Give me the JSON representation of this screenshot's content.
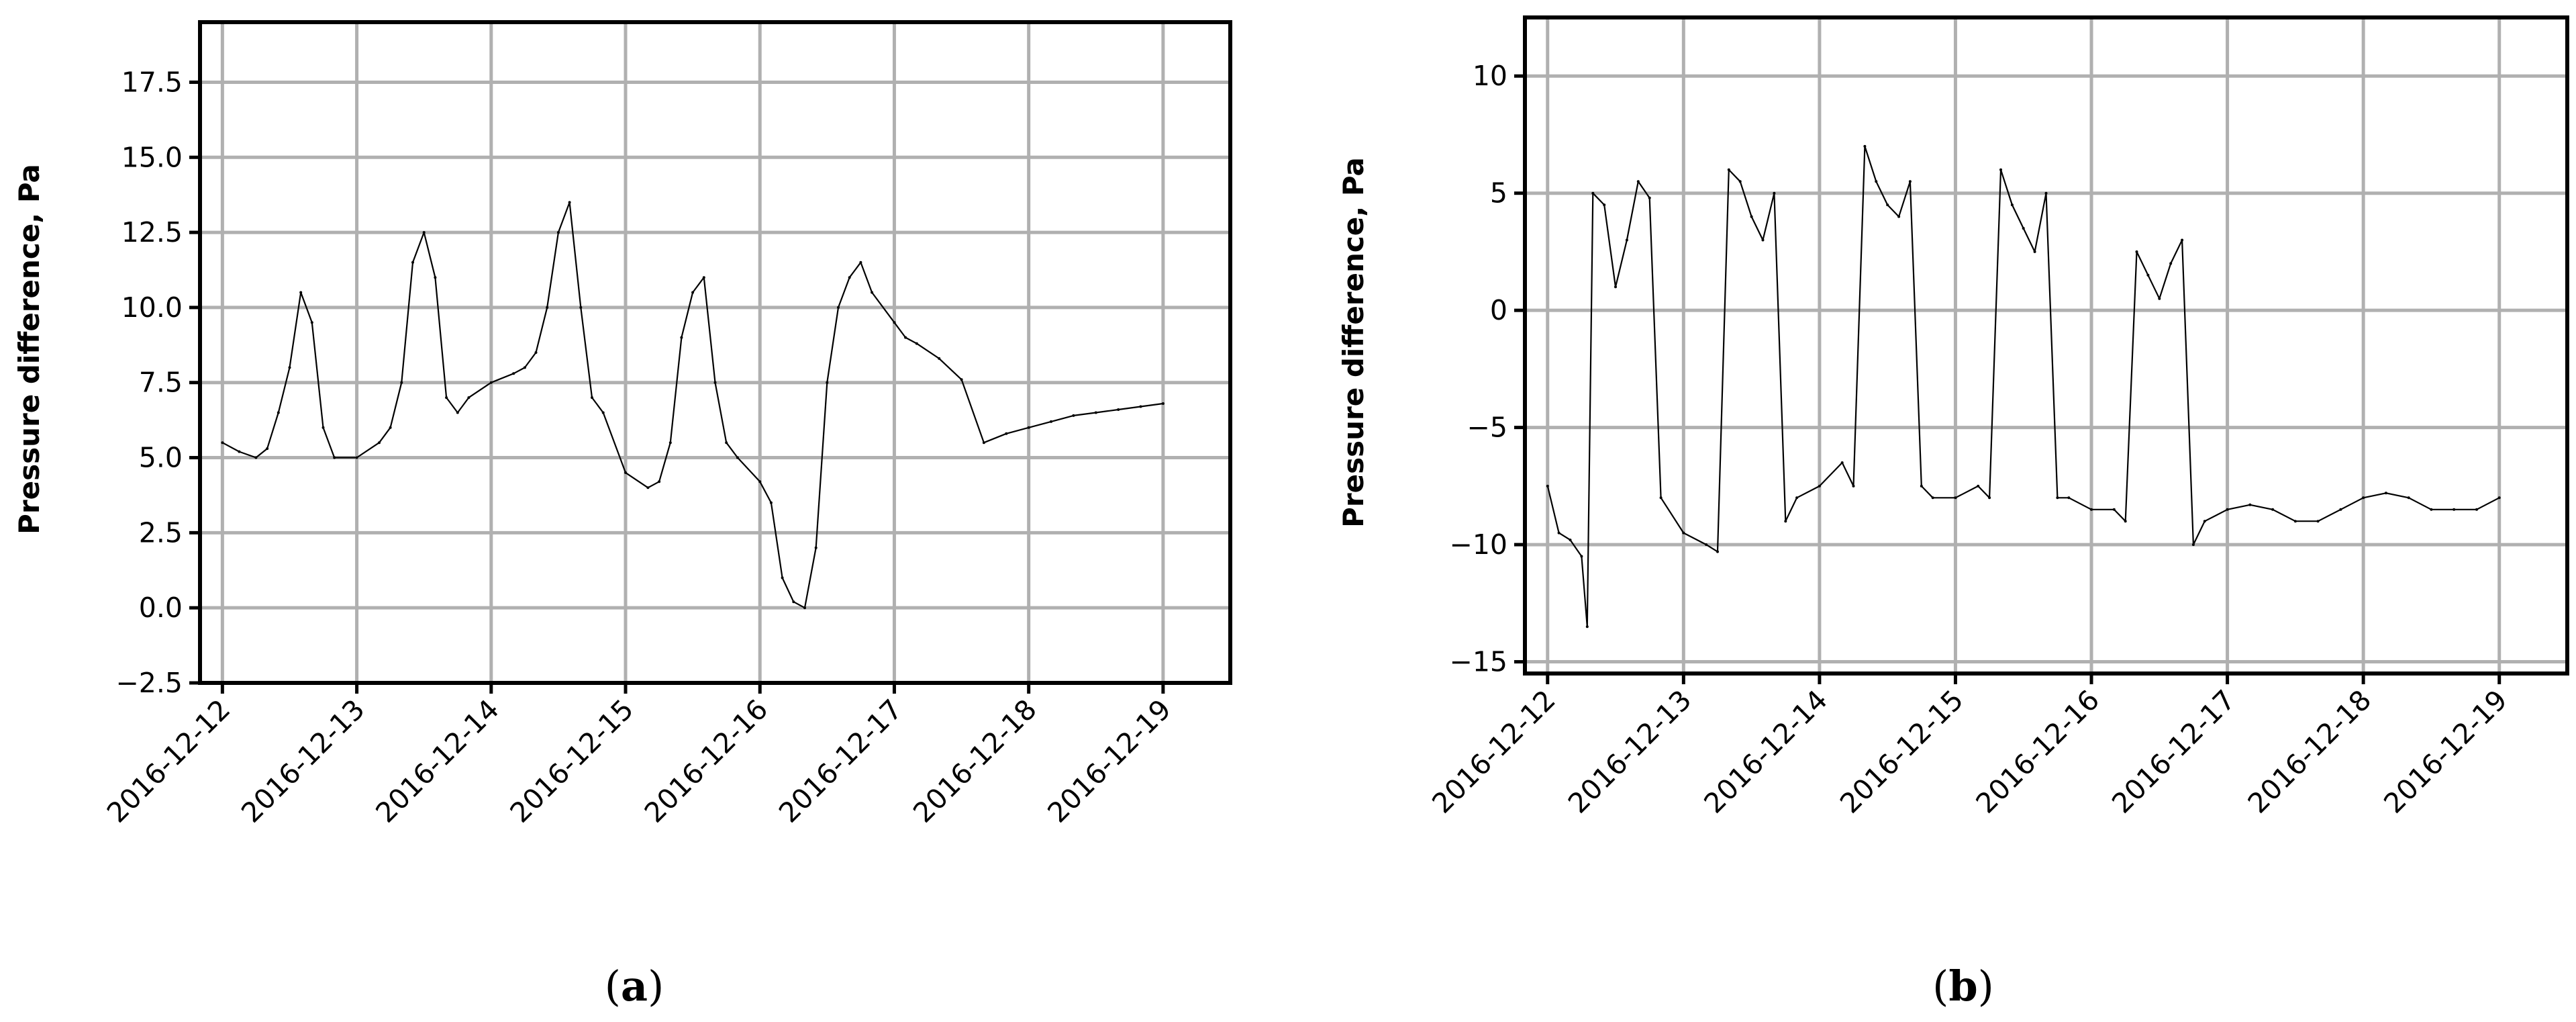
{
  "chart_data": [
    {
      "type": "line",
      "caption": "a",
      "ylabel": "Pressure difference, Pa",
      "xlabel": "",
      "title": "",
      "xlim": [
        "2016-12-11 20:00",
        "2016-12-19 12:00"
      ],
      "ylim": [
        -2.5,
        19.5
      ],
      "yticks": [
        -2.5,
        0.0,
        2.5,
        5.0,
        7.5,
        10.0,
        12.5,
        15.0,
        17.5
      ],
      "ytick_labels": [
        "−2.5",
        "0.0",
        "2.5",
        "5.0",
        "7.5",
        "10.0",
        "12.5",
        "15.0",
        "17.5"
      ],
      "xticks": [
        "2016-12-12",
        "2016-12-13",
        "2016-12-14",
        "2016-12-15",
        "2016-12-16",
        "2016-12-17",
        "2016-12-18",
        "2016-12-19"
      ],
      "grid": true,
      "legend": false,
      "series": [
        {
          "color": "#000000",
          "x": [
            "2016-12-12 00:00",
            "2016-12-12 03:00",
            "2016-12-12 06:00",
            "2016-12-12 08:00",
            "2016-12-12 10:00",
            "2016-12-12 12:00",
            "2016-12-12 14:00",
            "2016-12-12 16:00",
            "2016-12-12 18:00",
            "2016-12-12 20:00",
            "2016-12-13 00:00",
            "2016-12-13 04:00",
            "2016-12-13 06:00",
            "2016-12-13 08:00",
            "2016-12-13 10:00",
            "2016-12-13 12:00",
            "2016-12-13 14:00",
            "2016-12-13 16:00",
            "2016-12-13 18:00",
            "2016-12-13 20:00",
            "2016-12-14 00:00",
            "2016-12-14 04:00",
            "2016-12-14 06:00",
            "2016-12-14 08:00",
            "2016-12-14 10:00",
            "2016-12-14 12:00",
            "2016-12-14 14:00",
            "2016-12-14 16:00",
            "2016-12-14 18:00",
            "2016-12-14 20:00",
            "2016-12-15 00:00",
            "2016-12-15 04:00",
            "2016-12-15 06:00",
            "2016-12-15 08:00",
            "2016-12-15 10:00",
            "2016-12-15 12:00",
            "2016-12-15 14:00",
            "2016-12-15 16:00",
            "2016-12-15 18:00",
            "2016-12-15 20:00",
            "2016-12-16 00:00",
            "2016-12-16 02:00",
            "2016-12-16 04:00",
            "2016-12-16 06:00",
            "2016-12-16 08:00",
            "2016-12-16 10:00",
            "2016-12-16 12:00",
            "2016-12-16 14:00",
            "2016-12-16 16:00",
            "2016-12-16 18:00",
            "2016-12-16 20:00",
            "2016-12-17 00:00",
            "2016-12-17 02:00",
            "2016-12-17 04:00",
            "2016-12-17 08:00",
            "2016-12-17 12:00",
            "2016-12-17 16:00",
            "2016-12-17 20:00",
            "2016-12-18 00:00",
            "2016-12-18 04:00",
            "2016-12-18 08:00",
            "2016-12-18 12:00",
            "2016-12-18 16:00",
            "2016-12-18 20:00",
            "2016-12-19 00:00"
          ],
          "y": [
            5.5,
            5.2,
            5.0,
            5.3,
            6.5,
            8.0,
            10.5,
            9.5,
            6.0,
            5.0,
            5.0,
            5.5,
            6.0,
            7.5,
            11.5,
            12.5,
            11.0,
            7.0,
            6.5,
            7.0,
            7.5,
            7.8,
            8.0,
            8.5,
            10.0,
            12.5,
            13.5,
            10.0,
            7.0,
            6.5,
            4.5,
            4.0,
            4.2,
            5.5,
            9.0,
            10.5,
            11.0,
            7.5,
            5.5,
            5.0,
            4.2,
            3.5,
            1.0,
            0.2,
            0.0,
            2.0,
            7.5,
            10.0,
            11.0,
            11.5,
            10.5,
            9.5,
            9.0,
            8.8,
            8.3,
            7.6,
            5.5,
            5.8,
            6.0,
            6.2,
            6.4,
            6.5,
            6.6,
            6.7,
            6.8
          ]
        }
      ]
    },
    {
      "type": "line",
      "caption": "b",
      "ylabel": "Pressure difference, Pa",
      "xlabel": "",
      "title": "",
      "xlim": [
        "2016-12-11 20:00",
        "2016-12-19 12:00"
      ],
      "ylim": [
        -15.5,
        12.5
      ],
      "yticks": [
        -15,
        -10,
        -5,
        0,
        5,
        10
      ],
      "ytick_labels": [
        "−15",
        "−10",
        "−5",
        "0",
        "5",
        "10"
      ],
      "xticks": [
        "2016-12-12",
        "2016-12-13",
        "2016-12-14",
        "2016-12-15",
        "2016-12-16",
        "2016-12-17",
        "2016-12-18",
        "2016-12-19"
      ],
      "grid": true,
      "legend": false,
      "series": [
        {
          "color": "#000000",
          "x": [
            "2016-12-12 00:00",
            "2016-12-12 02:00",
            "2016-12-12 04:00",
            "2016-12-12 06:00",
            "2016-12-12 07:00",
            "2016-12-12 08:00",
            "2016-12-12 10:00",
            "2016-12-12 12:00",
            "2016-12-12 14:00",
            "2016-12-12 16:00",
            "2016-12-12 18:00",
            "2016-12-12 20:00",
            "2016-12-13 00:00",
            "2016-12-13 04:00",
            "2016-12-13 06:00",
            "2016-12-13 08:00",
            "2016-12-13 10:00",
            "2016-12-13 12:00",
            "2016-12-13 14:00",
            "2016-12-13 16:00",
            "2016-12-13 18:00",
            "2016-12-13 20:00",
            "2016-12-14 00:00",
            "2016-12-14 04:00",
            "2016-12-14 06:00",
            "2016-12-14 08:00",
            "2016-12-14 10:00",
            "2016-12-14 12:00",
            "2016-12-14 14:00",
            "2016-12-14 16:00",
            "2016-12-14 18:00",
            "2016-12-14 20:00",
            "2016-12-15 00:00",
            "2016-12-15 04:00",
            "2016-12-15 06:00",
            "2016-12-15 08:00",
            "2016-12-15 10:00",
            "2016-12-15 12:00",
            "2016-12-15 14:00",
            "2016-12-15 16:00",
            "2016-12-15 18:00",
            "2016-12-15 20:00",
            "2016-12-16 00:00",
            "2016-12-16 04:00",
            "2016-12-16 06:00",
            "2016-12-16 08:00",
            "2016-12-16 10:00",
            "2016-12-16 12:00",
            "2016-12-16 14:00",
            "2016-12-16 16:00",
            "2016-12-16 18:00",
            "2016-12-16 20:00",
            "2016-12-17 00:00",
            "2016-12-17 04:00",
            "2016-12-17 08:00",
            "2016-12-17 12:00",
            "2016-12-17 16:00",
            "2016-12-17 20:00",
            "2016-12-18 00:00",
            "2016-12-18 04:00",
            "2016-12-18 08:00",
            "2016-12-18 12:00",
            "2016-12-18 16:00",
            "2016-12-18 20:00",
            "2016-12-19 00:00"
          ],
          "y": [
            -7.5,
            -9.5,
            -9.8,
            -10.5,
            -13.5,
            5.0,
            4.5,
            1.0,
            3.0,
            5.5,
            4.8,
            -8.0,
            -9.5,
            -10.0,
            -10.3,
            6.0,
            5.5,
            4.0,
            3.0,
            5.0,
            -9.0,
            -8.0,
            -7.5,
            -6.5,
            -7.5,
            7.0,
            5.5,
            4.5,
            4.0,
            5.5,
            -7.5,
            -8.0,
            -8.0,
            -7.5,
            -8.0,
            6.0,
            4.5,
            3.5,
            2.5,
            5.0,
            -8.0,
            -8.0,
            -8.5,
            -8.5,
            -9.0,
            2.5,
            1.5,
            0.5,
            2.0,
            3.0,
            -10.0,
            -9.0,
            -8.5,
            -8.3,
            -8.5,
            -9.0,
            -9.0,
            -8.5,
            -8.0,
            -7.8,
            -8.0,
            -8.5,
            -8.5,
            -8.5,
            -8.0
          ]
        }
      ]
    }
  ]
}
